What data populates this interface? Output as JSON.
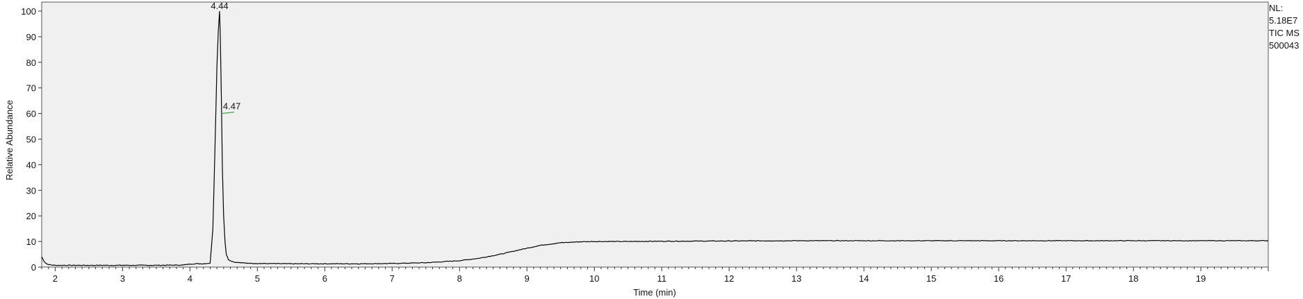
{
  "chart_data": {
    "type": "line",
    "title": "",
    "xlabel": "Time (min)",
    "ylabel": "Relative Abundance",
    "xlim": [
      1.8,
      20.0
    ],
    "ylim": [
      0,
      100
    ],
    "xticks": [
      "2",
      "3",
      "4",
      "5",
      "6",
      "7",
      "8",
      "9",
      "10",
      "11",
      "12",
      "13",
      "14",
      "15",
      "16",
      "17",
      "18",
      "19"
    ],
    "yticks": [
      "0",
      "10",
      "20",
      "30",
      "40",
      "50",
      "60",
      "70",
      "80",
      "90",
      "100"
    ],
    "grid": false,
    "colors": {
      "trace": "#000000",
      "plot_bg": "#f0f0f0",
      "marker": "#33aa33"
    },
    "peaks": [
      {
        "label": "4.44",
        "x": 4.44,
        "y": 100
      },
      {
        "label": "4.47",
        "x": 4.47,
        "y": 60
      }
    ],
    "series": [
      {
        "x": [
          1.8,
          1.83,
          1.86,
          1.9,
          1.95,
          2.0,
          2.5,
          3.0,
          3.5,
          3.9,
          4.0,
          4.1,
          4.2,
          4.3,
          4.34,
          4.37,
          4.4,
          4.42,
          4.44,
          4.45,
          4.46,
          4.47,
          4.48,
          4.5,
          4.52,
          4.54,
          4.57,
          4.6,
          4.65,
          4.7,
          4.8,
          5.0,
          5.5,
          6.0,
          6.5,
          7.0,
          7.5,
          8.0,
          8.3,
          8.6,
          8.9,
          9.2,
          9.5,
          9.8,
          10.0,
          10.5,
          11.0,
          12.0,
          13.0,
          14.0,
          15.0,
          16.0,
          17.0,
          18.0,
          19.0,
          20.0
        ],
        "y": [
          4.0,
          2.5,
          1.5,
          1.0,
          0.8,
          0.7,
          0.7,
          0.7,
          0.7,
          0.8,
          1.2,
          1.3,
          1.3,
          1.6,
          15,
          45,
          78,
          92,
          100,
          90,
          75,
          60,
          40,
          20,
          10,
          5,
          3,
          2.5,
          2.0,
          1.8,
          1.6,
          1.4,
          1.3,
          1.3,
          1.3,
          1.4,
          1.7,
          2.5,
          3.5,
          5.0,
          6.8,
          8.5,
          9.5,
          9.9,
          10.0,
          10.0,
          10.1,
          10.2,
          10.3,
          10.3,
          10.3,
          10.3,
          10.3,
          10.3,
          10.3,
          10.3
        ]
      }
    ]
  },
  "info": {
    "nl_label": "NL:",
    "nl_value": "5.18E7",
    "scan": "TIC  MS",
    "file": "500043"
  }
}
